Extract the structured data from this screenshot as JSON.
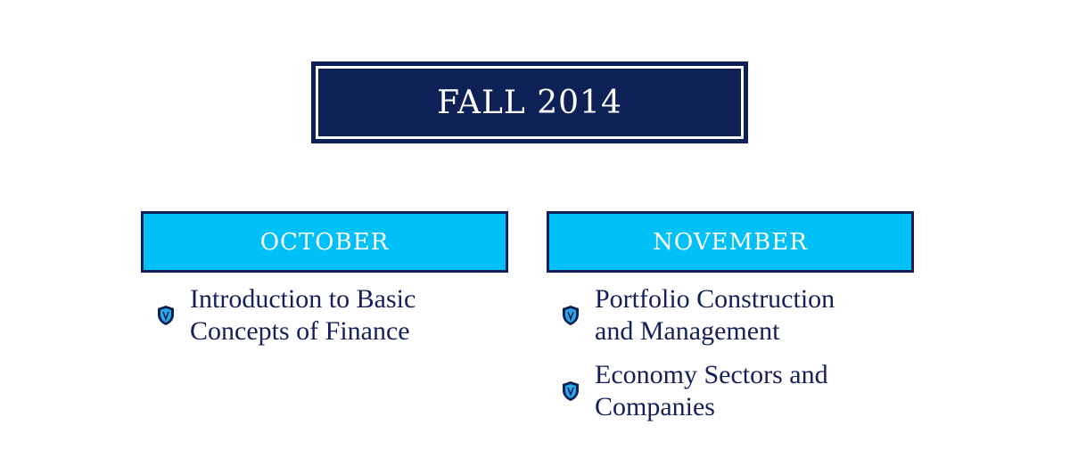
{
  "title": "FALL 2014",
  "months": [
    {
      "label": "OCTOBER",
      "topics": [
        {
          "line1": "Introduction to Basic",
          "line2": "Concepts of Finance"
        }
      ]
    },
    {
      "label": "NOVEMBER",
      "topics": [
        {
          "line1": "Portfolio Construction",
          "line2": "and Management"
        },
        {
          "line1": "Economy Sectors and",
          "line2": "Companies"
        }
      ]
    }
  ],
  "colors": {
    "navy": "#0d2157",
    "accent_blue": "#00c0f8",
    "text": "#142058"
  },
  "icons": {
    "bullet": "shield-icon"
  }
}
